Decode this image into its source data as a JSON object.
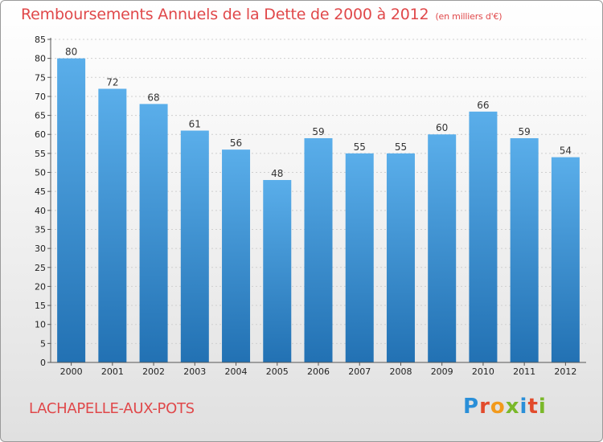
{
  "title": "Remboursements Annuels de la Dette de 2000 à 2012",
  "unit": "(en milliers d'€)",
  "commune": "LACHAPELLE-AUX-POTS",
  "logo": {
    "letters": [
      "P",
      "r",
      "o",
      "x",
      "i",
      "t",
      "i"
    ],
    "colors": [
      "#2a8fd8",
      "#e24b2c",
      "#f29a1c",
      "#7ab829",
      "#2a8fd8",
      "#e24b2c",
      "#7ab829"
    ]
  },
  "colors": {
    "title": "#e0484a",
    "bar_light": "#5aaeea",
    "bar_dark": "#2271b3"
  },
  "chart_data": {
    "type": "bar",
    "categories": [
      "2000",
      "2001",
      "2002",
      "2003",
      "2004",
      "2005",
      "2006",
      "2007",
      "2008",
      "2009",
      "2010",
      "2011",
      "2012"
    ],
    "values": [
      80,
      72,
      68,
      61,
      56,
      48,
      59,
      55,
      55,
      60,
      66,
      59,
      54
    ],
    "ylim": [
      0,
      85
    ],
    "yticks": [
      0,
      5,
      10,
      15,
      20,
      25,
      30,
      35,
      40,
      45,
      50,
      55,
      60,
      65,
      70,
      75,
      80,
      85
    ],
    "grid": true,
    "legend": "none"
  }
}
